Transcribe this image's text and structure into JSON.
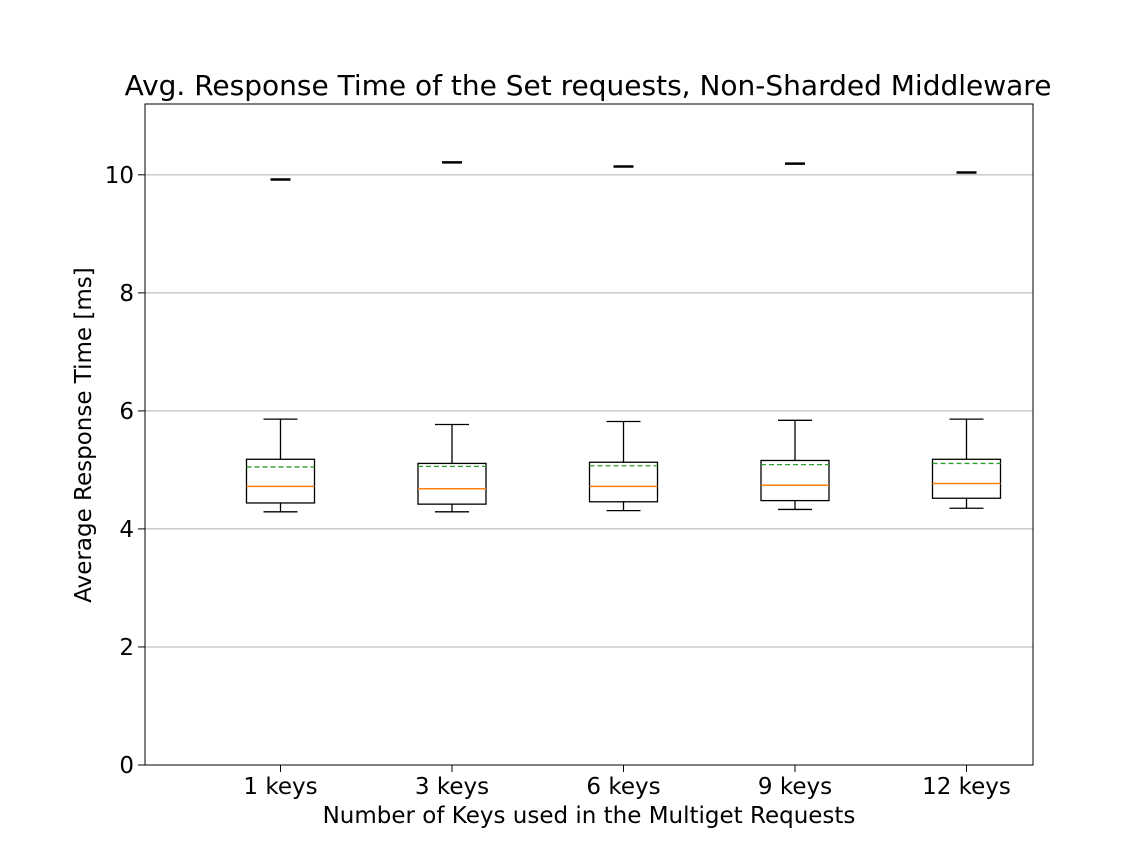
{
  "chart_data": {
    "type": "box",
    "title": "Avg. Response Time of the Set requests, Non-Sharded Middleware",
    "xlabel": "Number of Keys used in the Multiget Requests",
    "ylabel": "Average Response Time [ms]",
    "ylim": [
      0,
      11.2
    ],
    "yticks": [
      0,
      2,
      4,
      6,
      8,
      10
    ],
    "grid": "horizontal",
    "categories": [
      "1 keys",
      "3 keys",
      "6 keys",
      "9 keys",
      "12 keys"
    ],
    "boxes": [
      {
        "whisker_low": 4.29,
        "q1": 4.44,
        "median": 4.72,
        "mean": 5.05,
        "q3": 5.18,
        "whisker_high": 5.86,
        "outliers": [
          9.92
        ]
      },
      {
        "whisker_low": 4.29,
        "q1": 4.42,
        "median": 4.68,
        "mean": 5.06,
        "q3": 5.11,
        "whisker_high": 5.77,
        "outliers": [
          10.21
        ]
      },
      {
        "whisker_low": 4.31,
        "q1": 4.46,
        "median": 4.72,
        "mean": 5.07,
        "q3": 5.13,
        "whisker_high": 5.82,
        "outliers": [
          10.14
        ]
      },
      {
        "whisker_low": 4.33,
        "q1": 4.48,
        "median": 4.74,
        "mean": 5.09,
        "q3": 5.16,
        "whisker_high": 5.84,
        "outliers": [
          10.19
        ]
      },
      {
        "whisker_low": 4.35,
        "q1": 4.52,
        "median": 4.77,
        "mean": 5.11,
        "q3": 5.18,
        "whisker_high": 5.86,
        "outliers": [
          10.04
        ]
      }
    ],
    "colors": {
      "box": "#000000",
      "median": "#ff7f0e",
      "mean": "#2ca02c",
      "grid": "#b0b0b0"
    }
  }
}
